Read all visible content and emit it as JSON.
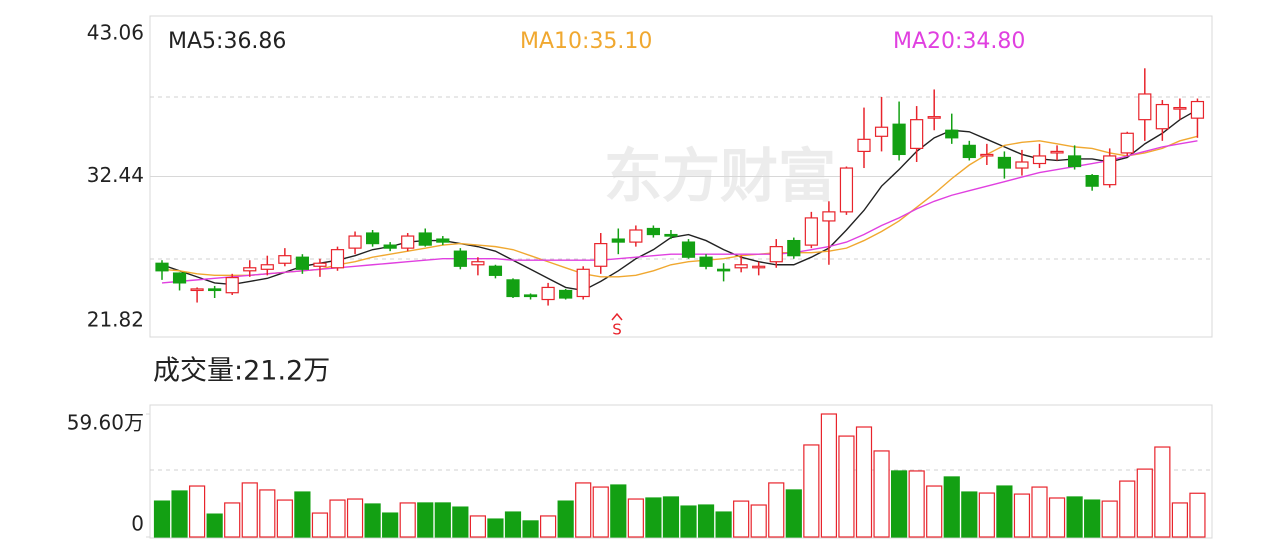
{
  "chart_data": [
    {
      "type": "candlestick",
      "watermark": "东方财富",
      "annotation": "S",
      "up_color": "#e8242c",
      "down_color": "#13a013",
      "ylim": [
        21.82,
        43.06
      ],
      "yticks": [
        21.82,
        32.44,
        43.06
      ],
      "open": [
        26.7,
        26.05,
        24.9,
        25.0,
        24.75,
        26.2,
        26.3,
        26.7,
        27.1,
        26.5,
        26.4,
        27.7,
        28.7,
        27.9,
        27.7,
        28.7,
        28.3,
        27.5,
        26.6,
        26.5,
        25.6,
        24.6,
        24.3,
        24.9,
        24.5,
        26.5,
        28.3,
        28.1,
        29.0,
        28.6,
        28.1,
        27.1,
        26.3,
        26.4,
        26.4,
        26.8,
        28.2,
        27.9,
        29.5,
        30.1,
        34.1,
        35.1,
        35.9,
        34.3,
        36.3,
        35.5,
        34.5,
        33.8,
        33.7,
        33.0,
        33.3,
        34.0,
        33.8,
        32.5,
        31.9,
        34.0,
        36.2,
        35.6,
        36.9,
        36.3
      ],
      "high": [
        26.9,
        26.1,
        25.1,
        25.2,
        26.0,
        26.9,
        27.2,
        27.7,
        27.3,
        27.0,
        27.8,
        28.8,
        28.9,
        28.1,
        28.7,
        29.0,
        28.5,
        27.7,
        27.1,
        26.6,
        25.7,
        24.7,
        25.4,
        25.0,
        26.5,
        28.7,
        29.0,
        29.2,
        29.2,
        28.9,
        28.3,
        27.3,
        26.7,
        27.2,
        26.8,
        28.3,
        28.4,
        30.1,
        30.8,
        33.1,
        37.0,
        37.7,
        37.4,
        37.1,
        38.2,
        36.6,
        34.8,
        34.6,
        34.1,
        34.2,
        34.6,
        34.5,
        34.5,
        32.6,
        34.3,
        35.4,
        39.6,
        37.5,
        37.6,
        37.6
      ],
      "low": [
        25.6,
        24.9,
        24.1,
        24.4,
        24.6,
        25.8,
        25.9,
        26.5,
        26.0,
        25.8,
        26.2,
        27.3,
        27.8,
        27.5,
        27.5,
        27.8,
        27.9,
        26.3,
        25.9,
        25.7,
        24.4,
        24.3,
        23.9,
        24.3,
        24.3,
        26.0,
        27.3,
        27.8,
        28.4,
        28.3,
        27.0,
        26.3,
        25.5,
        26.1,
        25.9,
        26.4,
        27.0,
        27.7,
        26.6,
        29.9,
        33.0,
        34.1,
        33.5,
        33.4,
        35.5,
        34.6,
        33.5,
        33.2,
        32.3,
        32.5,
        33.0,
        33.5,
        32.9,
        31.5,
        31.7,
        33.8,
        34.8,
        34.8,
        36.2,
        35.0
      ],
      "close": [
        26.2,
        25.4,
        25.0,
        24.9,
        25.75,
        26.4,
        26.6,
        27.2,
        26.3,
        26.7,
        27.6,
        28.5,
        28.0,
        27.7,
        28.5,
        27.9,
        28.1,
        26.5,
        26.8,
        25.9,
        24.5,
        24.5,
        25.1,
        24.4,
        26.3,
        28.0,
        28.1,
        28.9,
        28.6,
        28.5,
        27.1,
        26.5,
        26.2,
        26.6,
        26.5,
        27.8,
        27.2,
        29.7,
        30.1,
        33.0,
        34.9,
        35.7,
        33.9,
        36.2,
        36.4,
        35.0,
        33.7,
        33.9,
        33.0,
        33.4,
        33.8,
        34.1,
        33.1,
        31.8,
        33.8,
        35.3,
        37.9,
        37.2,
        37.0,
        37.4
      ],
      "series": [
        {
          "name": "MA5:36.86",
          "color": "#222222",
          "values": [
            26.6,
            26.2,
            25.8,
            25.4,
            25.3,
            25.5,
            25.7,
            26.1,
            26.5,
            26.7,
            26.9,
            27.2,
            27.6,
            27.8,
            28.1,
            28.2,
            28.2,
            28.0,
            27.8,
            27.5,
            26.9,
            26.3,
            25.7,
            25.1,
            24.9,
            25.5,
            26.2,
            27.0,
            27.6,
            28.4,
            28.6,
            28.2,
            27.6,
            27.1,
            26.8,
            26.6,
            26.6,
            27.1,
            27.7,
            28.9,
            30.2,
            31.8,
            32.9,
            34.1,
            35.0,
            35.5,
            35.4,
            34.9,
            34.4,
            33.9,
            33.6,
            33.5,
            33.6,
            33.6,
            33.4,
            33.7,
            34.6,
            35.3,
            36.2,
            36.86
          ]
        },
        {
          "name": "MA10:35.10",
          "color": "#f0a830",
          "values": [
            26.3,
            26.2,
            26.0,
            25.9,
            25.9,
            25.9,
            26.0,
            26.1,
            26.2,
            26.3,
            26.6,
            26.8,
            27.1,
            27.3,
            27.5,
            27.7,
            27.9,
            28.0,
            27.9,
            27.8,
            27.6,
            27.2,
            26.8,
            26.4,
            26.0,
            25.8,
            25.8,
            25.9,
            26.2,
            26.6,
            26.8,
            26.9,
            27.0,
            27.2,
            27.3,
            27.4,
            27.4,
            27.4,
            27.5,
            27.7,
            28.2,
            28.8,
            29.5,
            30.4,
            31.3,
            32.3,
            33.2,
            33.9,
            34.5,
            34.7,
            34.8,
            34.6,
            34.4,
            34.3,
            34.0,
            33.8,
            34.0,
            34.3,
            34.8,
            35.1
          ]
        },
        {
          "name": "MA20:34.80",
          "color": "#e040e0",
          "values": [
            25.4,
            25.5,
            25.6,
            25.7,
            25.8,
            25.9,
            26.0,
            26.1,
            26.2,
            26.3,
            26.4,
            26.5,
            26.6,
            26.7,
            26.8,
            26.9,
            27.0,
            27.0,
            27.0,
            27.0,
            26.9,
            26.9,
            26.9,
            26.9,
            26.9,
            26.9,
            27.0,
            27.1,
            27.2,
            27.3,
            27.3,
            27.3,
            27.3,
            27.3,
            27.3,
            27.3,
            27.4,
            27.6,
            27.8,
            28.1,
            28.6,
            29.2,
            29.7,
            30.3,
            30.8,
            31.2,
            31.5,
            31.8,
            32.1,
            32.4,
            32.7,
            32.9,
            33.1,
            33.3,
            33.5,
            33.8,
            34.1,
            34.4,
            34.6,
            34.8
          ]
        }
      ]
    },
    {
      "type": "bar",
      "title": "成交量:21.2万",
      "ylim": [
        0,
        59.6
      ],
      "yticks": [
        0,
        {
          "value": 59.6,
          "label": "59.60万"
        }
      ],
      "values": [
        17.4,
        22.3,
        24.7,
        11.1,
        16.5,
        26.2,
        22.8,
        17.9,
        21.8,
        11.6,
        17.9,
        18.4,
        16.0,
        11.6,
        16.5,
        16.5,
        16.5,
        14.5,
        10.2,
        8.7,
        12.1,
        7.8,
        10.2,
        17.4,
        26.2,
        24.2,
        25.2,
        18.4,
        18.9,
        19.4,
        15.0,
        15.5,
        12.1,
        17.4,
        15.5,
        26.2,
        22.8,
        44.6,
        59.6,
        48.9,
        53.3,
        41.7,
        32.0,
        32.0,
        24.7,
        29.1,
        21.8,
        21.3,
        24.7,
        20.8,
        24.2,
        18.9,
        19.4,
        17.9,
        17.4,
        27.1,
        32.9,
        43.6,
        16.5,
        21.2
      ]
    }
  ]
}
